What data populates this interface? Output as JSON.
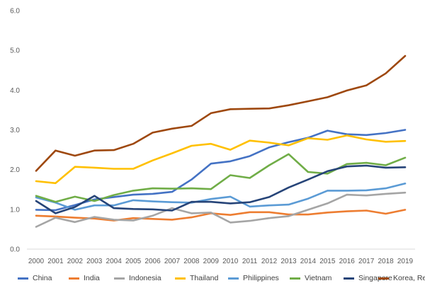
{
  "chart_data": {
    "type": "line",
    "title": "",
    "xlabel": "",
    "ylabel": "",
    "ylim": [
      0,
      6
    ],
    "ytick_labels": [
      "0.0",
      "1.0",
      "2.0",
      "3.0",
      "4.0",
      "5.0",
      "6.0"
    ],
    "categories": [
      "2000",
      "2001",
      "2002",
      "2003",
      "2004",
      "2005",
      "2006",
      "2007",
      "2008",
      "2009",
      "2010",
      "2011",
      "2012",
      "2013",
      "2014",
      "2015",
      "2016",
      "2017",
      "2018",
      "2019"
    ],
    "grid": "none",
    "legend_position": "bottom",
    "series": [
      {
        "name": "China",
        "color": "#4472C4",
        "values": [
          0.99,
          0.98,
          1.11,
          1.25,
          1.31,
          1.37,
          1.39,
          1.44,
          1.75,
          2.15,
          2.21,
          2.34,
          2.56,
          2.69,
          2.8,
          2.98,
          2.89,
          2.87,
          2.92,
          3.0
        ]
      },
      {
        "name": "India",
        "color": "#ED7D31",
        "values": [
          0.84,
          0.82,
          0.79,
          0.77,
          0.72,
          0.78,
          0.76,
          0.74,
          0.8,
          0.9,
          0.86,
          0.93,
          0.93,
          0.87,
          0.87,
          0.92,
          0.95,
          0.97,
          0.89,
          0.99
        ]
      },
      {
        "name": "Indonesia",
        "color": "#A5A5A5",
        "values": [
          0.56,
          0.79,
          0.68,
          0.81,
          0.74,
          0.72,
          0.84,
          1.03,
          0.9,
          0.92,
          0.67,
          0.71,
          0.78,
          0.83,
          0.99,
          1.15,
          1.37,
          1.35,
          1.39,
          1.42
        ]
      },
      {
        "name": "Thailand",
        "color": "#FFC000",
        "values": [
          1.71,
          1.66,
          2.07,
          2.05,
          2.02,
          2.02,
          2.23,
          2.41,
          2.6,
          2.65,
          2.5,
          2.73,
          2.68,
          2.61,
          2.79,
          2.75,
          2.86,
          2.76,
          2.7,
          2.72
        ]
      },
      {
        "name": "Philippines",
        "color": "#5B9BD5",
        "values": [
          1.3,
          1.17,
          0.99,
          1.1,
          1.1,
          1.23,
          1.2,
          1.18,
          1.17,
          1.26,
          1.32,
          1.07,
          1.1,
          1.12,
          1.27,
          1.47,
          1.47,
          1.48,
          1.53,
          1.65
        ]
      },
      {
        "name": "Vietnam",
        "color": "#70AD47",
        "values": [
          1.34,
          1.19,
          1.32,
          1.21,
          1.36,
          1.47,
          1.53,
          1.52,
          1.53,
          1.51,
          1.86,
          1.79,
          2.11,
          2.39,
          1.94,
          1.9,
          2.14,
          2.17,
          2.11,
          2.3
        ]
      },
      {
        "name": "Singapore",
        "color": "#264478",
        "values": [
          1.21,
          0.9,
          1.06,
          1.34,
          1.03,
          1.01,
          1.0,
          0.97,
          1.19,
          1.19,
          1.15,
          1.18,
          1.31,
          1.55,
          1.75,
          1.96,
          2.08,
          2.1,
          2.05,
          2.06
        ]
      },
      {
        "name": "Korea, Rep.",
        "color": "#9E480E",
        "values": [
          1.97,
          2.48,
          2.35,
          2.48,
          2.49,
          2.65,
          2.93,
          3.03,
          3.1,
          3.42,
          3.52,
          3.53,
          3.54,
          3.62,
          3.72,
          3.82,
          3.99,
          4.12,
          4.42,
          4.86
        ]
      }
    ]
  }
}
